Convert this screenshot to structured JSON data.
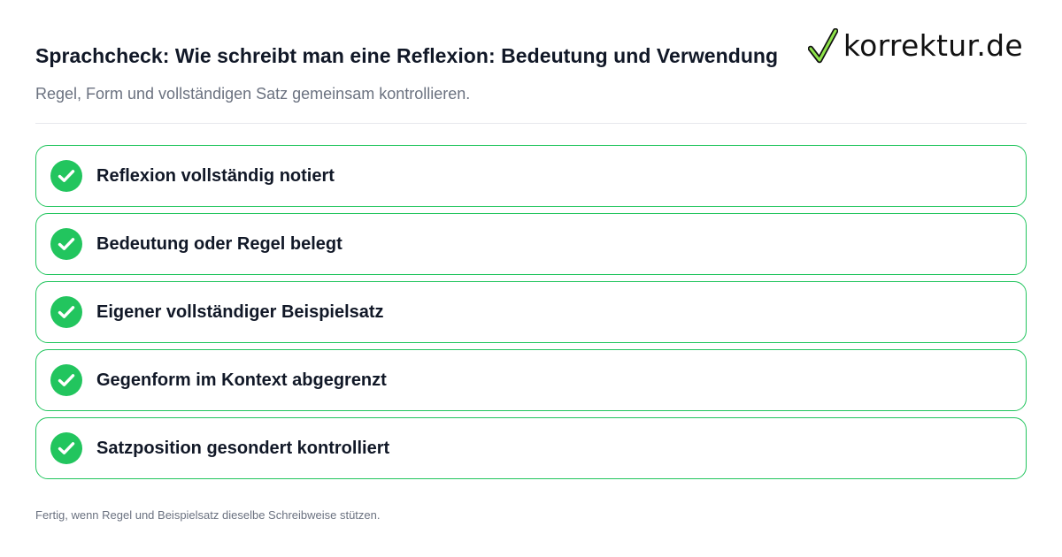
{
  "header": {
    "title": "Sprachcheck: Wie schreibt man eine Reflexion: Bedeutung und Verwendung",
    "subtitle": "Regel, Form und vollständigen Satz gemeinsam kontrollieren."
  },
  "logo": {
    "text": "korrektur.de",
    "icon": "checkmark-icon"
  },
  "checklist": {
    "items": [
      {
        "label": "Reflexion vollständig notiert",
        "checked": true
      },
      {
        "label": "Bedeutung oder Regel belegt",
        "checked": true
      },
      {
        "label": "Eigener vollständiger Beispielsatz",
        "checked": true
      },
      {
        "label": "Gegenform im Kontext abgegrenzt",
        "checked": true
      },
      {
        "label": "Satzposition gesondert kontrolliert",
        "checked": true
      }
    ]
  },
  "footer": {
    "text": "Fertig, wenn Regel und Beispielsatz dieselbe Schreibweise stützen."
  },
  "colors": {
    "accent_green": "#22c55e",
    "title_text": "#111827",
    "muted_text": "#6b7280"
  }
}
